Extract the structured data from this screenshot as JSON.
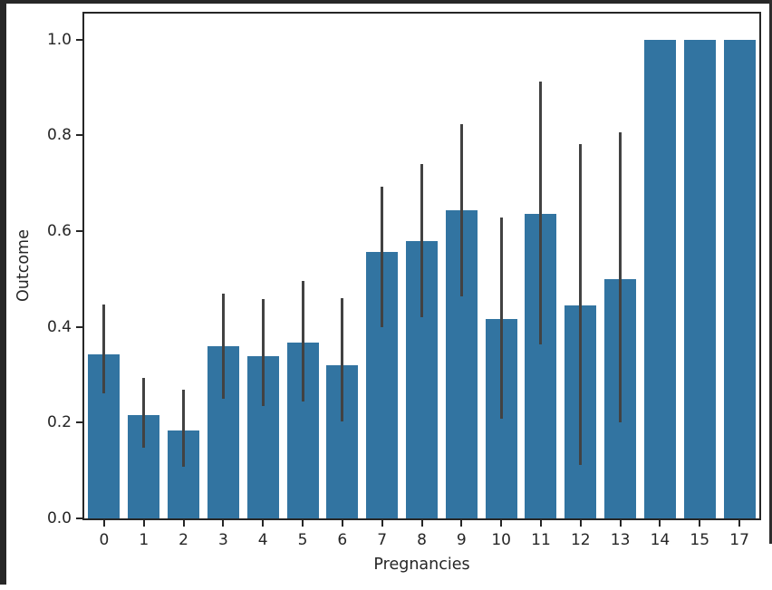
{
  "window": {
    "frame_color": "#272727",
    "background_color": "#ffffff"
  },
  "chart_data": {
    "type": "bar",
    "title": "",
    "xlabel": "Pregnancies",
    "ylabel": "Outcome",
    "categories": [
      "0",
      "1",
      "2",
      "3",
      "4",
      "5",
      "6",
      "7",
      "8",
      "9",
      "10",
      "11",
      "12",
      "13",
      "14",
      "15",
      "17"
    ],
    "values": [
      0.342,
      0.215,
      0.184,
      0.36,
      0.338,
      0.368,
      0.32,
      0.556,
      0.579,
      0.643,
      0.417,
      0.636,
      0.444,
      0.5,
      1.0,
      1.0,
      1.0
    ],
    "error_bars": [
      [
        0.262,
        0.446
      ],
      [
        0.148,
        0.293
      ],
      [
        0.107,
        0.268
      ],
      [
        0.25,
        0.47
      ],
      [
        0.235,
        0.457
      ],
      [
        0.245,
        0.495
      ],
      [
        0.203,
        0.46
      ],
      [
        0.4,
        0.693
      ],
      [
        0.421,
        0.74
      ],
      [
        0.464,
        0.824
      ],
      [
        0.208,
        0.629
      ],
      [
        0.364,
        0.913
      ],
      [
        0.111,
        0.781
      ],
      [
        0.2,
        0.806
      ],
      null,
      null,
      null
    ],
    "ytick_labels": [
      "0.0",
      "0.2",
      "0.4",
      "0.6",
      "0.8",
      "1.0"
    ],
    "ytick_values": [
      0.0,
      0.2,
      0.4,
      0.6,
      0.8,
      1.0
    ],
    "ylim": [
      0,
      1.054
    ],
    "grid": false,
    "legend": null,
    "bar_width_fraction": 0.8,
    "bar_color": "#3274a1",
    "error_color": "#424242",
    "text_color": "#262626"
  }
}
